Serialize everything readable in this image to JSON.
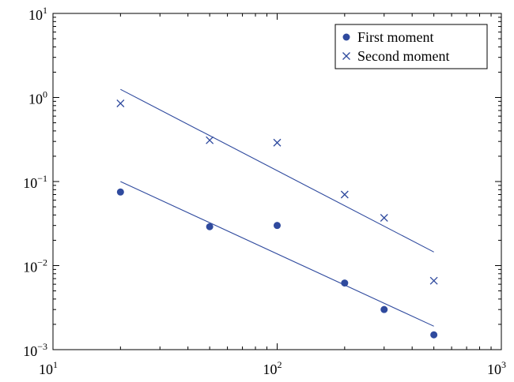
{
  "chart_data": {
    "type": "scatter",
    "title": "",
    "xlabel": "",
    "ylabel": "",
    "x_scale": "log",
    "y_scale": "log",
    "xlim": [
      10,
      1000
    ],
    "ylim": [
      0.001,
      10
    ],
    "grid": false,
    "legend_position": "top-right",
    "x_ticks": [
      {
        "base": "10",
        "exp": "1",
        "value": 10
      },
      {
        "base": "10",
        "exp": "2",
        "value": 100
      },
      {
        "base": "10",
        "exp": "3",
        "value": 1000
      }
    ],
    "y_ticks": [
      {
        "base": "10",
        "exp": "−3",
        "value": 0.001
      },
      {
        "base": "10",
        "exp": "−2",
        "value": 0.01
      },
      {
        "base": "10",
        "exp": "−1",
        "value": 0.1
      },
      {
        "base": "10",
        "exp": "0",
        "value": 1
      },
      {
        "base": "10",
        "exp": "1",
        "value": 10
      }
    ],
    "series": [
      {
        "name": "First moment",
        "marker": "circle",
        "color": "#2f4a9e",
        "x": [
          20,
          50,
          100,
          200,
          300,
          500
        ],
        "y": [
          0.075,
          0.029,
          0.03,
          0.0062,
          0.003,
          0.0015
        ],
        "fit_line": {
          "x": [
            20,
            500
          ],
          "y": [
            0.1,
            0.0019
          ]
        }
      },
      {
        "name": "Second moment",
        "marker": "x",
        "color": "#2f4a9e",
        "x": [
          20,
          50,
          100,
          200,
          300,
          500
        ],
        "y": [
          0.85,
          0.31,
          0.29,
          0.07,
          0.037,
          0.0066
        ],
        "fit_line": {
          "x": [
            20,
            500
          ],
          "y": [
            1.25,
            0.0145
          ]
        }
      }
    ]
  }
}
